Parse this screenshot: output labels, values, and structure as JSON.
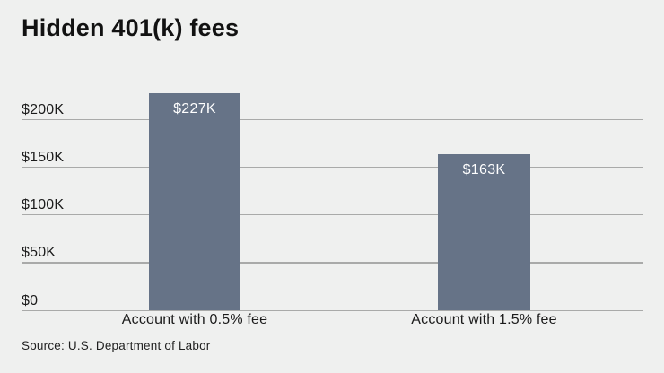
{
  "chart_data": {
    "type": "bar",
    "title": "Hidden 401(k) fees",
    "source": "Source: U.S. Department of Labor",
    "categories": [
      "Account with 0.5% fee",
      "Account with 1.5% fee"
    ],
    "values": [
      227,
      163
    ],
    "value_labels": [
      "$227K",
      "$163K"
    ],
    "unit": "thousands of USD",
    "yticks": [
      {
        "value": 0,
        "label": "$0"
      },
      {
        "value": 50,
        "label": "$50K"
      },
      {
        "value": 100,
        "label": "$100K"
      },
      {
        "value": 150,
        "label": "$150K"
      },
      {
        "value": 200,
        "label": "$200K"
      }
    ],
    "ylim": [
      0,
      235
    ],
    "grid": true,
    "legend": "none",
    "value_label_position": "inside-top",
    "colors": {
      "bar": "#667387",
      "background": "#eff0ef",
      "gridline": "#a9aaa9",
      "text": "#1b1b1b",
      "value_label_text": "#ffffff"
    }
  }
}
